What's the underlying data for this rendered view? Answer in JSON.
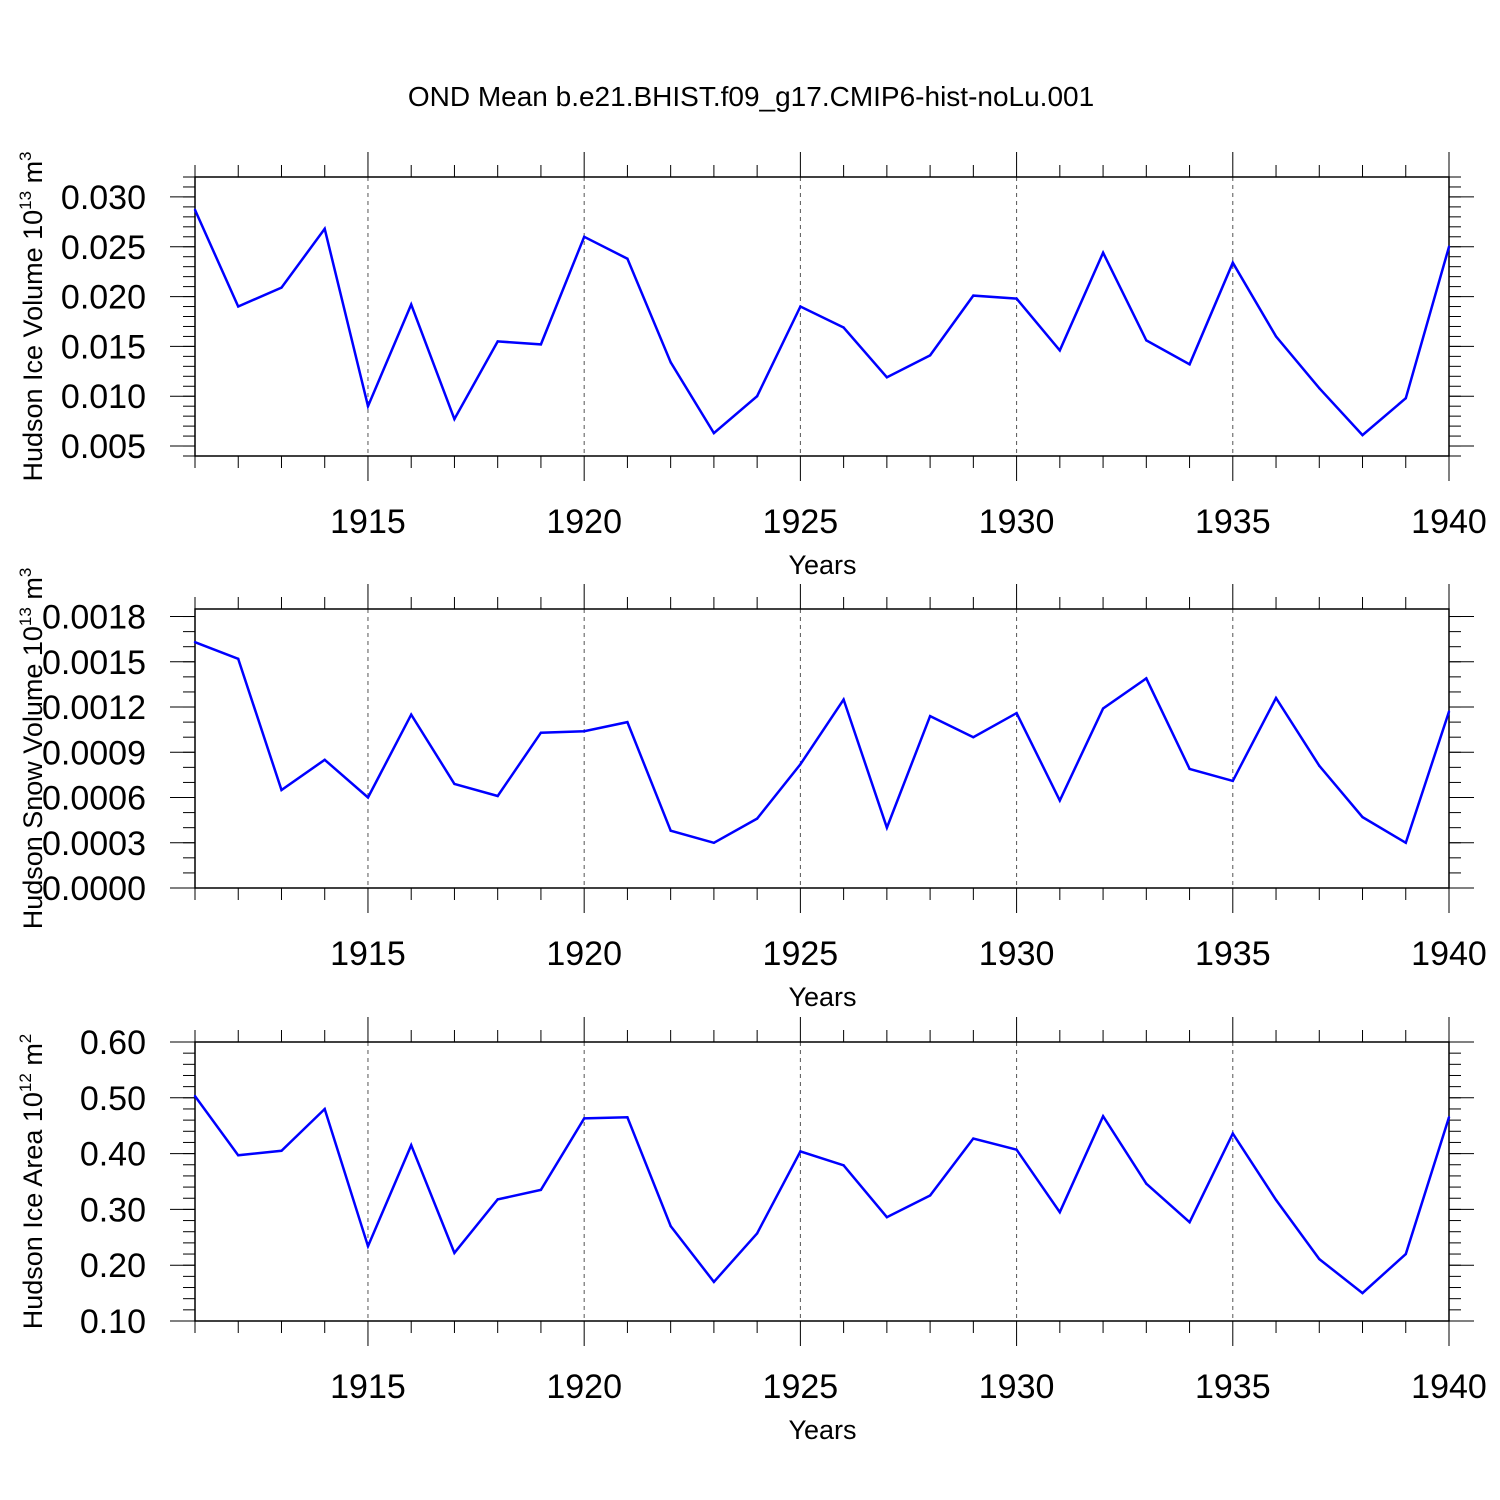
{
  "figure": {
    "title": "OND Mean b.e21.BHIST.f09_g17.CMIP6-hist-noLu.001"
  },
  "colors": {
    "series": "#0000ff",
    "frame": "#000000",
    "grid": "#555555"
  },
  "chart_data": [
    {
      "type": "line",
      "ylabel": "Hudson Ice Volume 10",
      "ylabel_exp": "13",
      "ylabel_unit": " m",
      "ylabel_unit_exp": "3",
      "xlabel": "Years",
      "x": [
        1911,
        1912,
        1913,
        1914,
        1915,
        1916,
        1917,
        1918,
        1919,
        1920,
        1921,
        1922,
        1923,
        1924,
        1925,
        1926,
        1927,
        1928,
        1929,
        1930,
        1931,
        1932,
        1933,
        1934,
        1935,
        1936,
        1937,
        1938,
        1939,
        1940
      ],
      "values": [
        0.0287,
        0.019,
        0.0209,
        0.0268,
        0.009,
        0.0192,
        0.0077,
        0.0155,
        0.0152,
        0.026,
        0.0238,
        0.0134,
        0.0063,
        0.01,
        0.019,
        0.0169,
        0.0119,
        0.0141,
        0.0201,
        0.0198,
        0.0146,
        0.0244,
        0.0156,
        0.0132,
        0.0234,
        0.016,
        0.0108,
        0.0061,
        0.0098,
        0.025
      ],
      "xlim": [
        1911,
        1940
      ],
      "ylim": [
        0.004,
        0.032
      ],
      "xticks": [
        "1915",
        "1920",
        "1925",
        "1930",
        "1935",
        "1940"
      ],
      "yticks": [
        "0.005",
        "0.010",
        "0.015",
        "0.020",
        "0.025",
        "0.030"
      ],
      "ytick_values": [
        0.005,
        0.01,
        0.015,
        0.02,
        0.025,
        0.03
      ],
      "yminor_step": 0.001,
      "grid": "x-dashed"
    },
    {
      "type": "line",
      "ylabel": "Hudson Snow Volume 10",
      "ylabel_exp": "13",
      "ylabel_unit": " m",
      "ylabel_unit_exp": "3",
      "xlabel": "Years",
      "x": [
        1911,
        1912,
        1913,
        1914,
        1915,
        1916,
        1917,
        1918,
        1919,
        1920,
        1921,
        1922,
        1923,
        1924,
        1925,
        1926,
        1927,
        1928,
        1929,
        1930,
        1931,
        1932,
        1933,
        1934,
        1935,
        1936,
        1937,
        1938,
        1939,
        1940
      ],
      "values": [
        0.00163,
        0.00152,
        0.00065,
        0.00085,
        0.0006,
        0.00115,
        0.00069,
        0.00061,
        0.00103,
        0.00104,
        0.0011,
        0.00038,
        0.0003,
        0.00046,
        0.00082,
        0.00125,
        0.0004,
        0.00114,
        0.001,
        0.00116,
        0.00058,
        0.00119,
        0.00139,
        0.00079,
        0.00071,
        0.00126,
        0.00081,
        0.00047,
        0.0003,
        0.00117
      ],
      "xlim": [
        1911,
        1940
      ],
      "ylim": [
        0.0,
        0.00185
      ],
      "xticks": [
        "1915",
        "1920",
        "1925",
        "1930",
        "1935",
        "1940"
      ],
      "yticks": [
        "0.0000",
        "0.0003",
        "0.0006",
        "0.0009",
        "0.0012",
        "0.0015",
        "0.0018"
      ],
      "ytick_values": [
        0.0,
        0.0003,
        0.0006,
        0.0009,
        0.0012,
        0.0015,
        0.0018
      ],
      "yminor_step": 0.0001,
      "grid": "x-dashed"
    },
    {
      "type": "line",
      "ylabel": "Hudson Ice Area 10",
      "ylabel_exp": "12",
      "ylabel_unit": " m",
      "ylabel_unit_exp": "2",
      "xlabel": "Years",
      "x": [
        1911,
        1912,
        1913,
        1914,
        1915,
        1916,
        1917,
        1918,
        1919,
        1920,
        1921,
        1922,
        1923,
        1924,
        1925,
        1926,
        1927,
        1928,
        1929,
        1930,
        1931,
        1932,
        1933,
        1934,
        1935,
        1936,
        1937,
        1938,
        1939,
        1940
      ],
      "values": [
        0.503,
        0.397,
        0.405,
        0.48,
        0.234,
        0.415,
        0.222,
        0.318,
        0.335,
        0.463,
        0.465,
        0.27,
        0.17,
        0.257,
        0.404,
        0.379,
        0.286,
        0.325,
        0.427,
        0.407,
        0.295,
        0.467,
        0.346,
        0.277,
        0.436,
        0.317,
        0.211,
        0.15,
        0.22,
        0.465
      ],
      "xlim": [
        1911,
        1940
      ],
      "ylim": [
        0.1,
        0.6
      ],
      "xticks": [
        "1915",
        "1920",
        "1925",
        "1930",
        "1935",
        "1940"
      ],
      "yticks": [
        "0.10",
        "0.20",
        "0.30",
        "0.40",
        "0.50",
        "0.60"
      ],
      "ytick_values": [
        0.1,
        0.2,
        0.3,
        0.4,
        0.5,
        0.6
      ],
      "yminor_step": 0.02,
      "grid": "x-dashed"
    }
  ]
}
